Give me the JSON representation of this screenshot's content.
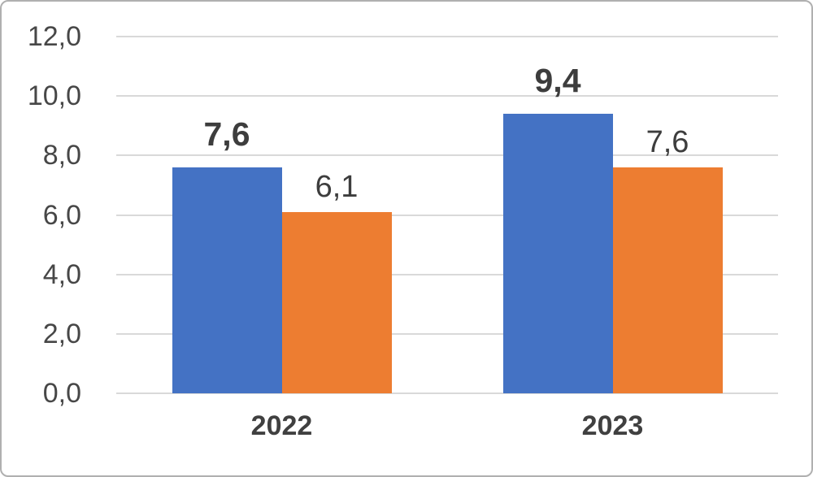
{
  "chart_data": {
    "type": "bar",
    "categories": [
      "2022",
      "2023"
    ],
    "series": [
      {
        "color": "#4472C4",
        "values": [
          7.6,
          9.4
        ],
        "value_labels": [
          "7,6",
          "9,4"
        ],
        "label_style": "bold"
      },
      {
        "color": "#ED7D31",
        "values": [
          6.1,
          7.6
        ],
        "value_labels": [
          "6,1",
          "7,6"
        ],
        "label_style": "regular"
      }
    ],
    "y_axis": {
      "min": 0,
      "max": 12,
      "step": 2,
      "tick_labels": [
        "0,0",
        "2,0",
        "4,0",
        "6,0",
        "8,0",
        "10,0",
        "12,0"
      ]
    },
    "grid": true,
    "legend": false,
    "title": "",
    "colors": {
      "gridline": "#d9d9d9",
      "axis_text": "#474747",
      "label_text": "#3d3d3d",
      "frame_border": "#b0b0b0",
      "background": "#ffffff"
    }
  }
}
